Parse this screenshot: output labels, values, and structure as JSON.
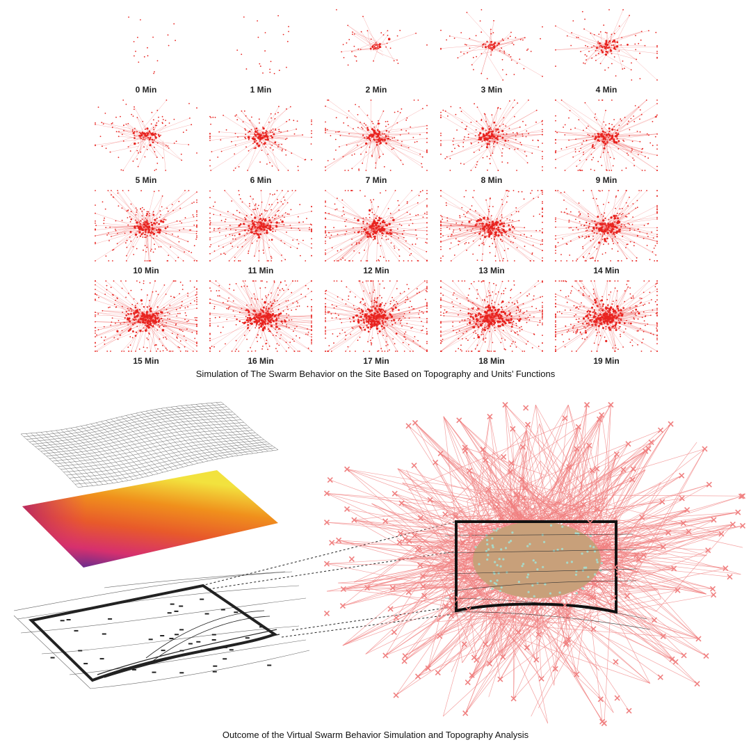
{
  "panels": [
    {
      "label": "0 Min",
      "n": 18,
      "links": 0,
      "core": 0,
      "ring": false
    },
    {
      "label": "1 Min",
      "n": 22,
      "links": 0,
      "core": 0,
      "ring": false
    },
    {
      "label": "2 Min",
      "n": 40,
      "links": 22,
      "core": 6,
      "ring": true
    },
    {
      "label": "3 Min",
      "n": 70,
      "links": 40,
      "core": 12,
      "ring": true
    },
    {
      "label": "4 Min",
      "n": 90,
      "links": 50,
      "core": 30,
      "ring": false
    },
    {
      "label": "5 Min",
      "n": 110,
      "links": 60,
      "core": 40,
      "ring": false
    },
    {
      "label": "6 Min",
      "n": 130,
      "links": 70,
      "core": 50,
      "ring": false
    },
    {
      "label": "7 Min",
      "n": 140,
      "links": 80,
      "core": 55,
      "ring": false
    },
    {
      "label": "8 Min",
      "n": 150,
      "links": 85,
      "core": 60,
      "ring": false
    },
    {
      "label": "9 Min",
      "n": 160,
      "links": 90,
      "core": 65,
      "ring": false
    },
    {
      "label": "10 Min",
      "n": 190,
      "links": 100,
      "core": 80,
      "ring": false
    },
    {
      "label": "11 Min",
      "n": 200,
      "links": 105,
      "core": 85,
      "ring": false
    },
    {
      "label": "12 Min",
      "n": 210,
      "links": 110,
      "core": 90,
      "ring": false
    },
    {
      "label": "13 Min",
      "n": 220,
      "links": 115,
      "core": 95,
      "ring": false
    },
    {
      "label": "14 Min",
      "n": 230,
      "links": 120,
      "core": 100,
      "ring": false
    },
    {
      "label": "15 Min",
      "n": 260,
      "links": 130,
      "core": 130,
      "ring": false
    },
    {
      "label": "16 Min",
      "n": 270,
      "links": 135,
      "core": 140,
      "ring": false
    },
    {
      "label": "17 Min",
      "n": 280,
      "links": 140,
      "core": 150,
      "ring": false
    },
    {
      "label": "18 Min",
      "n": 290,
      "links": 145,
      "core": 160,
      "ring": false
    },
    {
      "label": "19 Min",
      "n": 300,
      "links": 150,
      "core": 170,
      "ring": false
    }
  ],
  "captions": {
    "top": "Simulation of The Swarm Behavior on the Site Based on Topography and Units’ Functions",
    "bottom": "Outcome of the Virtual Swarm Behavior Simulation and Topography Analysis"
  },
  "colors": {
    "swarm": "#e8231f",
    "swarm_light": "#f08080",
    "mesh": "#555555",
    "site_fill": "#c8a07a",
    "site_speckle": "#a8d8c8",
    "heat_low": "#4b2a9a",
    "heat_mid": "#e0356a",
    "heat_high": "#f08a1c",
    "heat_top": "#f2e040"
  }
}
